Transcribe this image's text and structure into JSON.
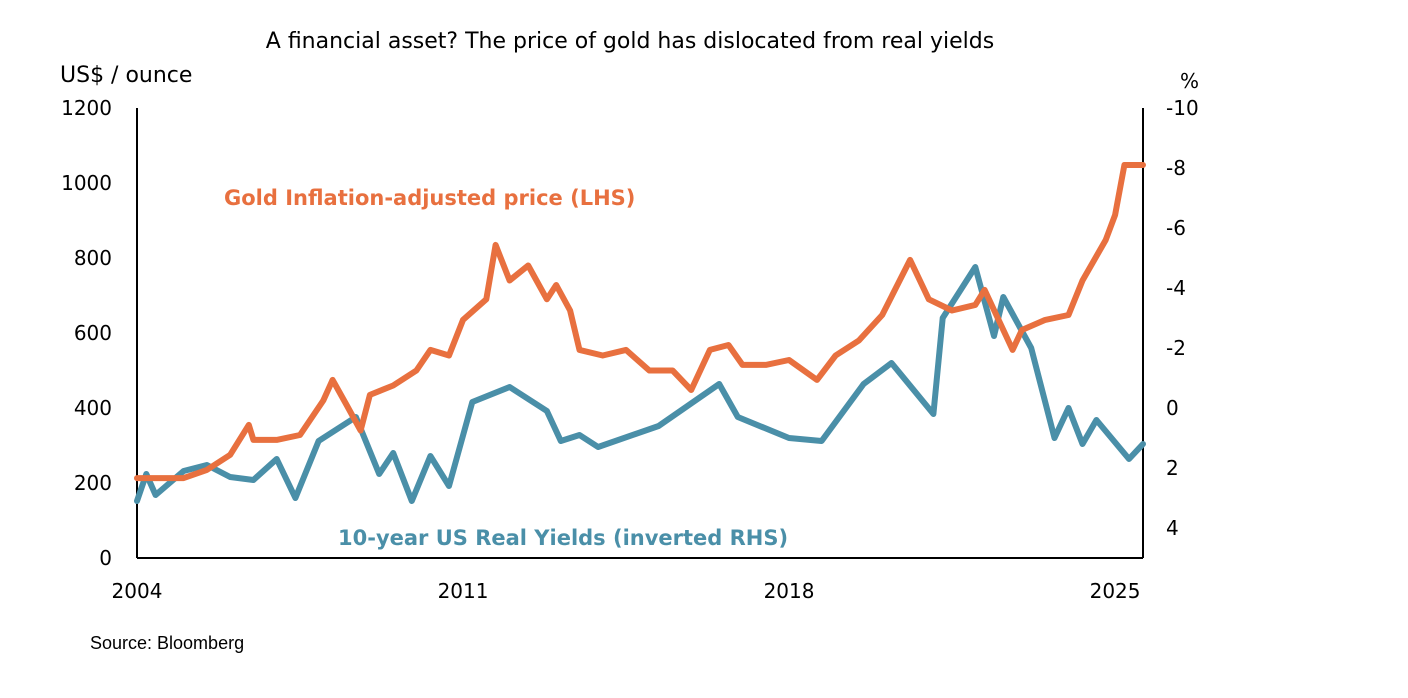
{
  "chart_data": {
    "type": "line",
    "title": "A financial asset? The price of gold has dislocated from real yields",
    "ylabel_left": "US$ / ounce",
    "ylabel_right": "%",
    "xlim": [
      2004,
      2025.6
    ],
    "ylim_left": [
      0,
      1200
    ],
    "ylim_right": [
      -10,
      5
    ],
    "right_axis_inverted": true,
    "x_ticks": [
      "2004",
      "2011",
      "2018",
      "2025"
    ],
    "x_tick_values": [
      2004,
      2011,
      2018,
      2025
    ],
    "y_ticks_left": [
      "0",
      "200",
      "400",
      "600",
      "800",
      "1000",
      "1200"
    ],
    "y_tick_values_left": [
      0,
      200,
      400,
      600,
      800,
      1000,
      1200
    ],
    "y_ticks_right": [
      "-10",
      "-8",
      "-6",
      "-4",
      "-2",
      "0",
      "2",
      "4"
    ],
    "y_tick_values_right": [
      -10,
      -8,
      -6,
      -4,
      -2,
      0,
      2,
      4
    ],
    "grid": false,
    "series": [
      {
        "name": "Gold Inflation-adjusted  price (LHS)",
        "axis": "left",
        "color": "#E8703F",
        "x": [
          2004.0,
          2005.0,
          2005.5,
          2006.0,
          2006.4,
          2006.5,
          2007.0,
          2007.5,
          2008.0,
          2008.2,
          2008.5,
          2008.8,
          2009.0,
          2009.5,
          2010.0,
          2010.3,
          2010.7,
          2011.0,
          2011.5,
          2011.7,
          2012.0,
          2012.4,
          2012.8,
          2013.0,
          2013.3,
          2013.5,
          2014.0,
          2014.5,
          2015.0,
          2015.5,
          2015.9,
          2016.3,
          2016.7,
          2017.0,
          2017.5,
          2018.0,
          2018.6,
          2019.0,
          2019.5,
          2020.0,
          2020.6,
          2021.0,
          2021.5,
          2022.0,
          2022.2,
          2022.8,
          2023.0,
          2023.5,
          2024.0,
          2024.3,
          2024.8,
          2025.0,
          2025.2,
          2025.6
        ],
        "y": [
          213,
          213,
          235,
          275,
          355,
          315,
          315,
          328,
          420,
          475,
          408,
          340,
          435,
          460,
          500,
          555,
          540,
          635,
          690,
          835,
          740,
          780,
          690,
          728,
          660,
          555,
          540,
          555,
          500,
          500,
          448,
          555,
          568,
          515,
          515,
          528,
          475,
          540,
          580,
          648,
          795,
          690,
          660,
          675,
          715,
          555,
          608,
          635,
          648,
          740,
          848,
          915,
          1048,
          1048
        ]
      },
      {
        "name": "10-year US Real Yields (inverted RHS)",
        "axis": "right",
        "color": "#4A8FA8",
        "x": [
          2004.0,
          2004.2,
          2004.4,
          2005.0,
          2005.5,
          2006.0,
          2006.5,
          2007.0,
          2007.4,
          2007.9,
          2008.7,
          2009.2,
          2009.5,
          2009.9,
          2010.3,
          2010.7,
          2011.2,
          2012.0,
          2012.8,
          2013.1,
          2013.5,
          2013.9,
          2015.2,
          2016.5,
          2016.9,
          2018.0,
          2018.7,
          2019.6,
          2020.2,
          2021.1,
          2021.3,
          2022.0,
          2022.4,
          2022.6,
          2023.2,
          2023.7,
          2024.0,
          2024.3,
          2024.6,
          2025.3,
          2025.6
        ],
        "y": [
          3.1,
          2.2,
          2.9,
          2.1,
          1.9,
          2.3,
          2.4,
          1.7,
          3.0,
          1.1,
          0.3,
          2.2,
          1.5,
          3.1,
          1.6,
          2.6,
          -0.2,
          -0.7,
          0.1,
          1.1,
          0.9,
          1.3,
          0.6,
          -0.8,
          0.3,
          1.0,
          1.1,
          -0.8,
          -1.5,
          0.2,
          -3.0,
          -4.7,
          -2.4,
          -3.7,
          -2.0,
          1.0,
          0.0,
          1.2,
          0.4,
          1.7,
          1.2
        ]
      }
    ],
    "annotations": [
      "Gold Inflation-adjusted  price (LHS)",
      "10-year US Real Yields (inverted RHS)"
    ],
    "source": "Source: Bloomberg"
  }
}
